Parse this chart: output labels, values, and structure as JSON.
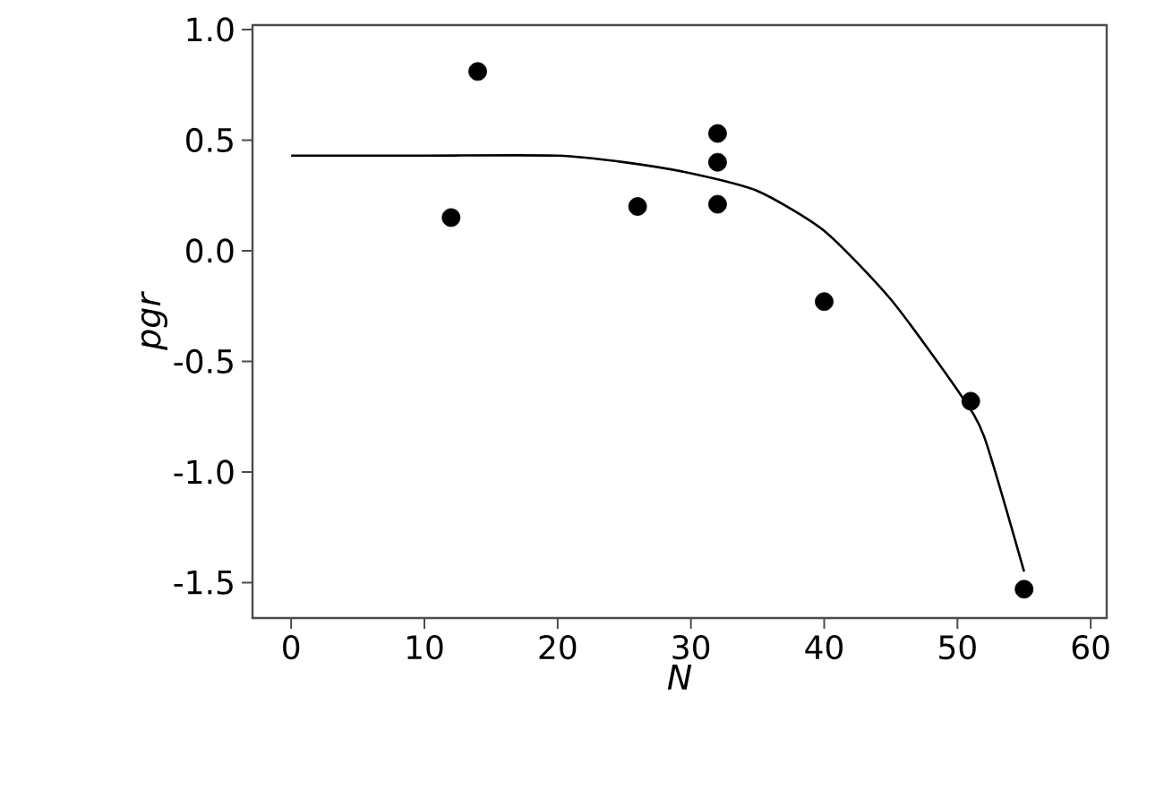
{
  "chart_data": {
    "type": "scatter",
    "xlabel": "N",
    "ylabel": "pgr",
    "xlim": [
      -2.9,
      61.2
    ],
    "ylim": [
      -1.66,
      1.02
    ],
    "xticks": [
      0,
      10,
      20,
      30,
      40,
      50,
      60
    ],
    "yticks": [
      {
        "value": 1.0,
        "label": "1.0"
      },
      {
        "value": 0.5,
        "label": "0.5"
      },
      {
        "value": 0.0,
        "label": "0.0"
      },
      {
        "value": -0.5,
        "label": "-0.5"
      },
      {
        "value": -1.0,
        "label": "-1.0"
      },
      {
        "value": -1.5,
        "label": "-1.5"
      }
    ],
    "series": [
      {
        "color": "#000000",
        "marker": "circle",
        "x": [
          12,
          14,
          26,
          32,
          32,
          32,
          40,
          51,
          55
        ],
        "values": [
          0.15,
          0.81,
          0.2,
          0.53,
          0.4,
          0.21,
          -0.23,
          -0.68,
          -1.53
        ]
      },
      {
        "type": "line",
        "color": "#000000",
        "marker": "none",
        "x": [
          0,
          10,
          20,
          25,
          30,
          35,
          40,
          45,
          50,
          52,
          55
        ],
        "values": [
          0.43,
          0.43,
          0.43,
          0.4,
          0.35,
          0.27,
          0.09,
          -0.22,
          -0.63,
          -0.84,
          -1.45
        ]
      }
    ]
  }
}
